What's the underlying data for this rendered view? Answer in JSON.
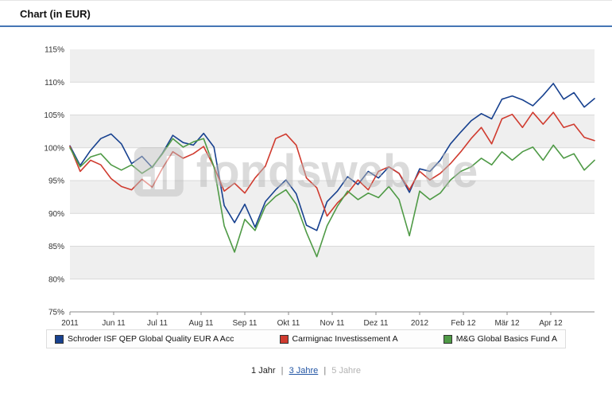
{
  "header": {
    "title": "Chart (in EUR)"
  },
  "watermark": {
    "text": "fondsweb.de",
    "icon": "bar-chart-icon"
  },
  "footer": {
    "separator": "|",
    "periods": [
      {
        "label": "1 Jahr",
        "state": "active"
      },
      {
        "label": "3 Jahre",
        "state": "link"
      },
      {
        "label": "5 Jahre",
        "state": "disabled"
      }
    ]
  },
  "chart_data": {
    "type": "line",
    "title": "Chart (in EUR)",
    "xlabel": "",
    "ylabel": "",
    "ylim": [
      75,
      115
    ],
    "y_tick_step": 5,
    "y_tick_suffix": "%",
    "grid": true,
    "band_color": "#efefef",
    "grid_color": "#d9d9d9",
    "legend_position": "bottom",
    "x_tick_labels": [
      "2011",
      "Jun 11",
      "Jul 11",
      "Aug 11",
      "Sep 11",
      "Okt 11",
      "Nov 11",
      "Dez 11",
      "2012",
      "Feb 12",
      "Mär 12",
      "Apr 12"
    ],
    "series": [
      {
        "name": "Schroder ISF QEP Global Quality EUR A Acc",
        "color": "#17418f",
        "values": [
          100.3,
          97.3,
          99.6,
          101.4,
          102.1,
          100.6,
          97.6,
          98.7,
          97.0,
          99.2,
          101.9,
          100.8,
          100.4,
          102.2,
          100.1,
          91.2,
          88.6,
          91.4,
          87.9,
          91.8,
          93.6,
          95.1,
          93.0,
          88.2,
          87.4,
          91.8,
          93.4,
          95.6,
          94.4,
          96.4,
          95.4,
          97.1,
          96.1,
          93.2,
          96.8,
          96.4,
          98.1,
          100.6,
          102.4,
          104.1,
          105.2,
          104.4,
          107.4,
          107.9,
          107.3,
          106.4,
          108.0,
          109.8,
          107.4,
          108.4,
          106.2,
          107.5
        ]
      },
      {
        "name": "Carmignac Investissement A",
        "color": "#d03b2f",
        "values": [
          100.2,
          96.4,
          98.1,
          97.4,
          95.3,
          94.1,
          93.6,
          95.2,
          94.0,
          96.9,
          99.4,
          98.4,
          99.1,
          100.2,
          97.1,
          93.4,
          94.6,
          93.1,
          95.4,
          97.2,
          101.4,
          102.1,
          100.4,
          95.4,
          93.9,
          89.6,
          91.6,
          93.1,
          95.1,
          93.6,
          96.4,
          97.1,
          96.1,
          93.6,
          96.4,
          95.1,
          96.1,
          97.6,
          99.4,
          101.4,
          103.1,
          100.6,
          104.4,
          105.1,
          103.1,
          105.4,
          103.6,
          105.4,
          103.1,
          103.6,
          101.6,
          101.1
        ]
      },
      {
        "name": "M&G Global Basics Fund A",
        "color": "#4f9a46",
        "values": [
          100.0,
          97.1,
          98.6,
          99.1,
          97.4,
          96.6,
          97.4,
          96.1,
          97.1,
          99.1,
          101.4,
          100.1,
          100.9,
          101.4,
          97.1,
          88.1,
          84.1,
          89.1,
          87.4,
          91.1,
          92.6,
          93.6,
          91.4,
          87.1,
          83.4,
          88.1,
          91.1,
          93.4,
          92.1,
          93.1,
          92.4,
          94.1,
          92.1,
          86.6,
          93.4,
          92.1,
          93.1,
          95.1,
          96.4,
          97.1,
          98.4,
          97.4,
          99.4,
          98.1,
          99.4,
          100.1,
          98.1,
          100.4,
          98.4,
          99.1,
          96.6,
          98.1
        ]
      }
    ]
  }
}
